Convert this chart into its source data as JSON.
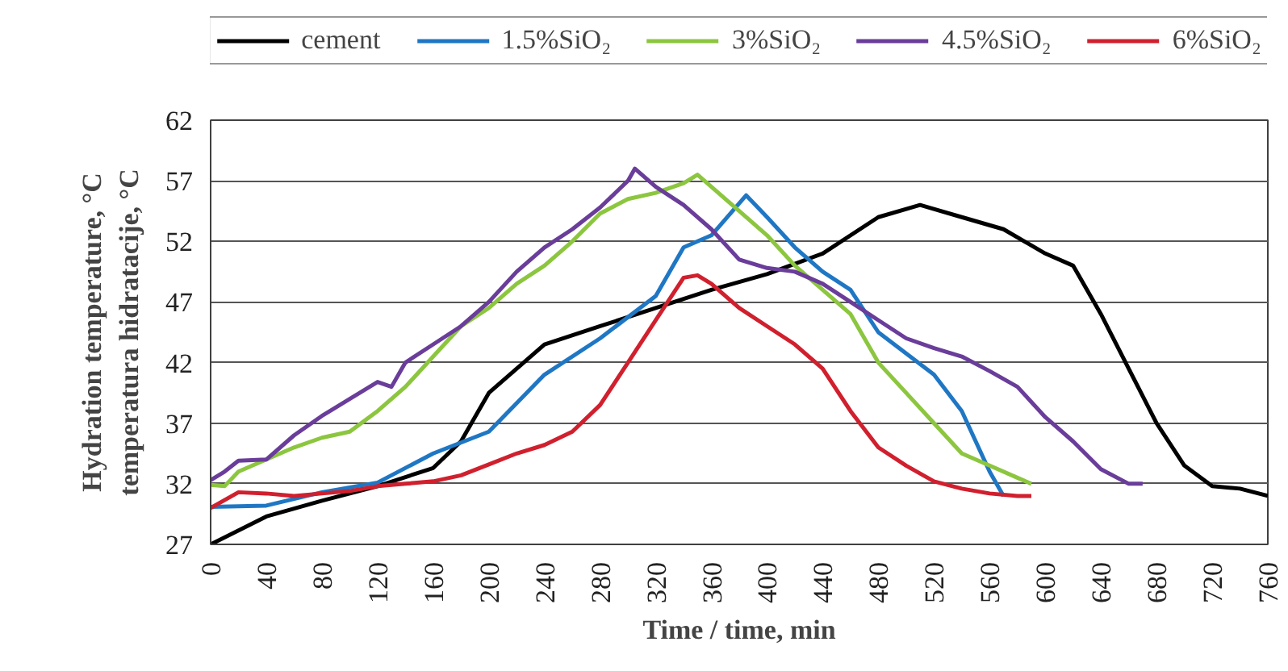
{
  "chart_data": {
    "type": "line",
    "xlabel": "Time / time, min",
    "ylabel": "Hydration temperature, °C\ntemperatura hidratacije, °C",
    "xlim": [
      0,
      760
    ],
    "xticks": [
      0,
      40,
      80,
      120,
      160,
      200,
      240,
      280,
      320,
      360,
      400,
      440,
      480,
      520,
      560,
      600,
      640,
      680,
      720,
      760
    ],
    "ylim": [
      27,
      62
    ],
    "yticks": [
      27,
      32,
      37,
      42,
      47,
      52,
      57,
      62
    ],
    "grid": "y",
    "legend": "top",
    "marker": "none",
    "line_style": "solid",
    "series": [
      {
        "name": "cement",
        "color": "#000000",
        "x": [
          0,
          40,
          80,
          120,
          160,
          180,
          200,
          240,
          280,
          320,
          360,
          400,
          440,
          480,
          510,
          540,
          570,
          600,
          620,
          640,
          660,
          680,
          700,
          720,
          740,
          760
        ],
        "values": [
          27,
          29.3,
          30.6,
          31.8,
          33.3,
          35.5,
          39.5,
          43.5,
          45,
          46.5,
          48,
          49.3,
          51,
          54,
          55,
          54,
          53,
          51,
          50,
          46,
          41.5,
          37,
          33.5,
          31.8,
          31.6,
          31
        ]
      },
      {
        "name": "1.5%SiO₂",
        "color": "#1f77c4",
        "x": [
          0,
          40,
          80,
          120,
          160,
          200,
          240,
          280,
          320,
          340,
          360,
          385,
          400,
          420,
          440,
          460,
          480,
          520,
          540,
          560,
          570
        ],
        "values": [
          30.1,
          30.2,
          31.3,
          32.1,
          34.5,
          36.3,
          41,
          44,
          47.5,
          51.5,
          52.5,
          55.8,
          54,
          51.5,
          49.5,
          48,
          44.5,
          41,
          38,
          33,
          31
        ]
      },
      {
        "name": "3%SiO₂",
        "color": "#8cc63f",
        "x": [
          0,
          10,
          20,
          40,
          60,
          80,
          100,
          120,
          140,
          160,
          180,
          200,
          220,
          240,
          260,
          280,
          300,
          320,
          340,
          350,
          360,
          380,
          400,
          420,
          440,
          460,
          480,
          500,
          520,
          540,
          560,
          580,
          590
        ],
        "values": [
          31.9,
          31.8,
          33,
          34,
          35,
          35.8,
          36.3,
          38,
          40,
          42.5,
          45,
          46.5,
          48.5,
          50,
          52,
          54.3,
          55.5,
          56,
          56.8,
          57.5,
          56.5,
          54.5,
          52.5,
          50,
          48,
          46,
          42,
          39.5,
          37,
          34.5,
          33.5,
          32.5,
          32
        ]
      },
      {
        "name": "4.5%SiO₂",
        "color": "#6a3d9a",
        "x": [
          0,
          10,
          20,
          40,
          60,
          80,
          100,
          120,
          130,
          140,
          160,
          180,
          200,
          220,
          240,
          260,
          280,
          300,
          305,
          320,
          340,
          360,
          380,
          400,
          420,
          440,
          460,
          480,
          500,
          520,
          540,
          560,
          580,
          600,
          620,
          640,
          660,
          670
        ],
        "values": [
          32.3,
          33,
          33.9,
          34,
          36,
          37.6,
          39,
          40.4,
          40,
          42,
          43.5,
          45,
          47,
          49.5,
          51.5,
          53,
          54.8,
          57,
          58,
          56.5,
          55,
          53,
          50.5,
          49.8,
          49.5,
          48.5,
          47,
          45.5,
          44,
          43.2,
          42.5,
          41.3,
          40,
          37.5,
          35.5,
          33.2,
          32,
          32
        ]
      },
      {
        "name": "6%SiO₂",
        "color": "#d0202e",
        "x": [
          0,
          20,
          40,
          60,
          80,
          100,
          120,
          140,
          160,
          180,
          200,
          220,
          240,
          260,
          280,
          300,
          320,
          340,
          350,
          360,
          380,
          400,
          420,
          440,
          460,
          480,
          500,
          520,
          540,
          560,
          580,
          590
        ],
        "values": [
          30,
          31.3,
          31.2,
          31,
          31.2,
          31.4,
          31.8,
          32,
          32.2,
          32.7,
          33.6,
          34.5,
          35.2,
          36.3,
          38.5,
          42,
          45.5,
          49,
          49.2,
          48.5,
          46.5,
          45,
          43.5,
          41.5,
          38,
          35,
          33.5,
          32.2,
          31.6,
          31.2,
          31,
          31
        ]
      }
    ]
  }
}
